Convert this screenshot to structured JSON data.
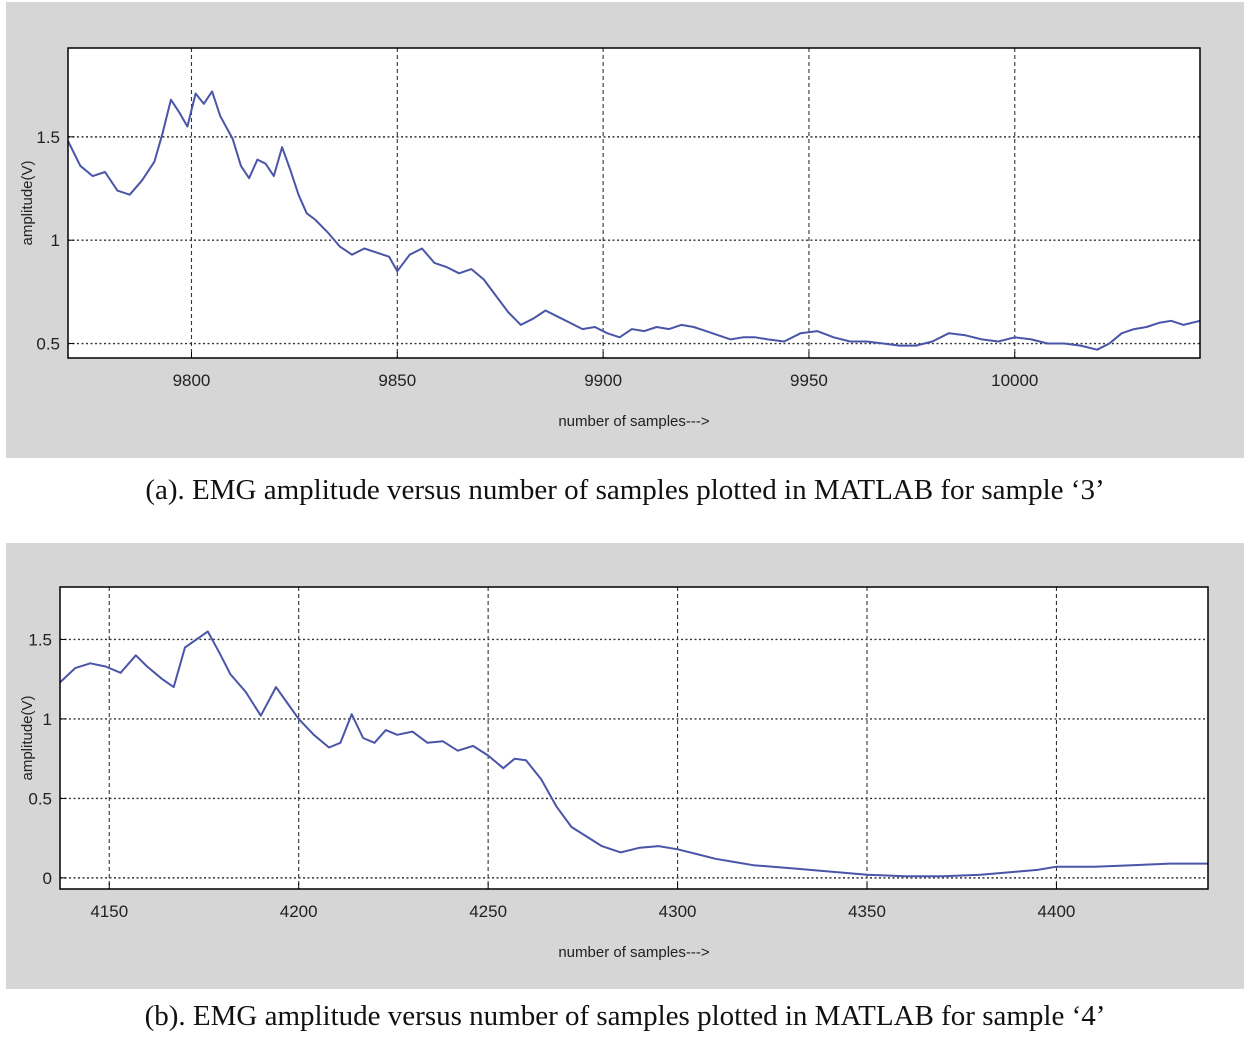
{
  "figure": {
    "caption_a": "(a). EMG amplitude versus number of samples plotted in MATLAB for sample ‘3’",
    "caption_b": "(b). EMG amplitude versus number of samples plotted in MATLAB for sample ‘4’"
  },
  "colors": {
    "line": "#4a55a8",
    "panel_bg": "#d6d6d6",
    "plot_bg": "#ffffff",
    "grid": "#333333"
  },
  "chart_data": [
    {
      "type": "line",
      "title": "",
      "xlabel": "number of samples--->",
      "ylabel": "amplitude(V)",
      "xlim": [
        9770,
        10045
      ],
      "ylim": [
        0.43,
        1.93
      ],
      "xticks": [
        9800,
        9850,
        9900,
        9950,
        10000
      ],
      "xtick_labels": [
        "9800",
        "9850",
        "9900",
        "9950",
        "10000"
      ],
      "yticks": [
        0.5,
        1,
        1.5
      ],
      "ytick_labels": [
        "0.5",
        "1",
        "1.5"
      ],
      "grid": true,
      "series": [
        {
          "name": "sample 3",
          "x": [
            9770,
            9773,
            9776,
            9779,
            9782,
            9785,
            9788,
            9791,
            9793,
            9795,
            9797,
            9799,
            9801,
            9803,
            9805,
            9807,
            9810,
            9812,
            9814,
            9816,
            9818,
            9820,
            9822,
            9824,
            9826,
            9828,
            9830,
            9833,
            9836,
            9839,
            9842,
            9845,
            9848,
            9850,
            9853,
            9856,
            9859,
            9862,
            9865,
            9868,
            9871,
            9874,
            9877,
            9880,
            9883,
            9886,
            9889,
            9892,
            9895,
            9898,
            9901,
            9904,
            9907,
            9910,
            9913,
            9916,
            9919,
            9922,
            9925,
            9928,
            9931,
            9934,
            9937,
            9940,
            9944,
            9948,
            9952,
            9956,
            9960,
            9964,
            9968,
            9972,
            9976,
            9980,
            9984,
            9988,
            9992,
            9996,
            10000,
            10004,
            10008,
            10012,
            10016,
            10020,
            10023,
            10026,
            10029,
            10032,
            10035,
            10038,
            10041,
            10045
          ],
          "values": [
            1.48,
            1.36,
            1.31,
            1.33,
            1.24,
            1.22,
            1.29,
            1.38,
            1.52,
            1.68,
            1.62,
            1.55,
            1.71,
            1.66,
            1.72,
            1.6,
            1.49,
            1.36,
            1.3,
            1.39,
            1.37,
            1.31,
            1.45,
            1.34,
            1.22,
            1.13,
            1.1,
            1.04,
            0.97,
            0.93,
            0.96,
            0.94,
            0.92,
            0.85,
            0.93,
            0.96,
            0.89,
            0.87,
            0.84,
            0.86,
            0.81,
            0.73,
            0.65,
            0.59,
            0.62,
            0.66,
            0.63,
            0.6,
            0.57,
            0.58,
            0.55,
            0.53,
            0.57,
            0.56,
            0.58,
            0.57,
            0.59,
            0.58,
            0.56,
            0.54,
            0.52,
            0.53,
            0.53,
            0.52,
            0.51,
            0.55,
            0.56,
            0.53,
            0.51,
            0.51,
            0.5,
            0.49,
            0.49,
            0.51,
            0.55,
            0.54,
            0.52,
            0.51,
            0.53,
            0.52,
            0.5,
            0.5,
            0.49,
            0.47,
            0.5,
            0.55,
            0.57,
            0.58,
            0.6,
            0.61,
            0.59,
            0.61
          ]
        }
      ]
    },
    {
      "type": "line",
      "title": "",
      "xlabel": "number of samples--->",
      "ylabel": "amplitude(V)",
      "xlim": [
        4137,
        4440
      ],
      "ylim": [
        -0.07,
        1.83
      ],
      "xticks": [
        4150,
        4200,
        4250,
        4300,
        4350,
        4400
      ],
      "xtick_labels": [
        "4150",
        "4200",
        "4250",
        "4300",
        "4350",
        "4400"
      ],
      "yticks": [
        0,
        0.5,
        1,
        1.5
      ],
      "ytick_labels": [
        "0",
        "0.5",
        "1",
        "1.5"
      ],
      "grid": true,
      "series": [
        {
          "name": "sample 4",
          "x": [
            4137,
            4141,
            4145,
            4149,
            4153,
            4157,
            4160,
            4164,
            4167,
            4170,
            4173,
            4176,
            4179,
            4182,
            4186,
            4190,
            4194,
            4197,
            4200,
            4204,
            4208,
            4211,
            4214,
            4217,
            4220,
            4223,
            4226,
            4230,
            4234,
            4238,
            4242,
            4246,
            4250,
            4254,
            4257,
            4260,
            4264,
            4268,
            4272,
            4276,
            4280,
            4285,
            4290,
            4295,
            4300,
            4305,
            4310,
            4315,
            4320,
            4330,
            4340,
            4350,
            4360,
            4370,
            4380,
            4390,
            4395,
            4400,
            4410,
            4420,
            4430,
            4440
          ],
          "values": [
            1.23,
            1.32,
            1.35,
            1.33,
            1.29,
            1.4,
            1.33,
            1.25,
            1.2,
            1.45,
            1.5,
            1.55,
            1.42,
            1.28,
            1.17,
            1.02,
            1.2,
            1.1,
            1.0,
            0.9,
            0.82,
            0.85,
            1.03,
            0.88,
            0.85,
            0.93,
            0.9,
            0.92,
            0.85,
            0.86,
            0.8,
            0.83,
            0.77,
            0.69,
            0.75,
            0.74,
            0.62,
            0.45,
            0.32,
            0.26,
            0.2,
            0.16,
            0.19,
            0.2,
            0.18,
            0.15,
            0.12,
            0.1,
            0.08,
            0.06,
            0.04,
            0.02,
            0.01,
            0.01,
            0.02,
            0.04,
            0.05,
            0.07,
            0.07,
            0.08,
            0.09,
            0.09
          ]
        }
      ]
    }
  ]
}
